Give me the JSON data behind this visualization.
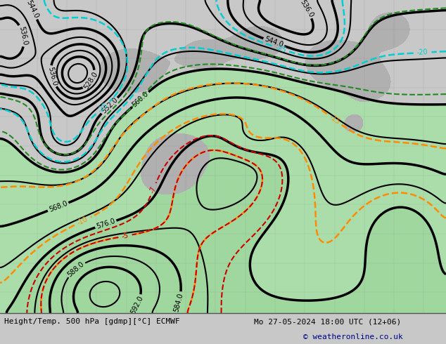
{
  "title_left": "Height/Temp. 500 hPa [gdmp][°C] ECMWF",
  "title_right": "Mo 27-05-2024 18:00 UTC (12+06)",
  "copyright": "© weatheronline.co.uk",
  "bg_color": "#c8c8c8",
  "ocean_color": "#dcdcdc",
  "green_fill": "#aaddaa",
  "green_fill2": "#88cc88",
  "gray_terrain": "#b0b0b0",
  "black": "#000000",
  "orange": "#FF8C00",
  "cyan": "#00CED1",
  "green_dash": "#228B22",
  "red_dash": "#CC0000",
  "figsize": [
    6.34,
    4.9
  ],
  "dpi": 100,
  "copyright_color": "#00008B"
}
